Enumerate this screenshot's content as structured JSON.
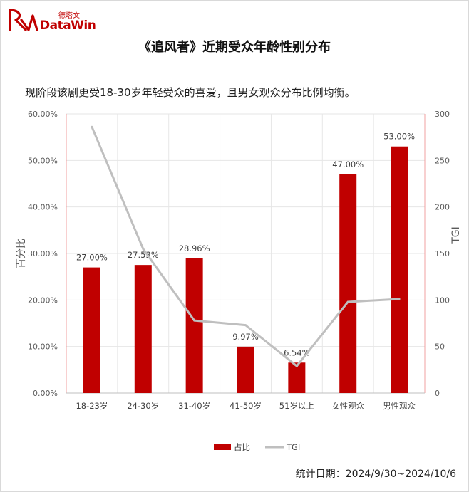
{
  "logo": {
    "brand_cn": "德塔文",
    "brand_en": "DataWin"
  },
  "title": "《追风者》近期受众年龄性别分布",
  "subtitle": "现阶段该剧更受18-30岁年轻受众的喜爱，且男女观众分布比例均衡。",
  "date_text": "统计日期：2024/9/30~2024/10/6",
  "colors": {
    "bar": "#c00000",
    "line": "#bfbfbf"
  },
  "chart_data": {
    "type": "bar",
    "categories": [
      "18-23岁",
      "24-30岁",
      "31-40岁",
      "41-50岁",
      "51岁以上",
      "女性观众",
      "男性观众"
    ],
    "series": [
      {
        "name": "占比",
        "type": "bar",
        "axis": "left",
        "values": [
          27.0,
          27.53,
          28.96,
          9.97,
          6.54,
          47.0,
          53.0
        ],
        "labels": [
          "27.00%",
          "27.53%",
          "28.96%",
          "9.97%",
          "6.54%",
          "47.00%",
          "53.00%"
        ]
      },
      {
        "name": "TGI",
        "type": "line",
        "axis": "right",
        "values": [
          286,
          155,
          78,
          73,
          29,
          98,
          101
        ]
      }
    ],
    "ylabel": "百分比",
    "y2label": "TGI",
    "ylim": [
      0,
      60
    ],
    "y2lim": [
      0,
      300
    ],
    "yticks": [
      "0.00%",
      "10.00%",
      "20.00%",
      "30.00%",
      "40.00%",
      "50.00%",
      "60.00%"
    ],
    "y2ticks": [
      "0",
      "50",
      "100",
      "150",
      "200",
      "250",
      "300"
    ],
    "grid": true,
    "legend": "bottom"
  }
}
